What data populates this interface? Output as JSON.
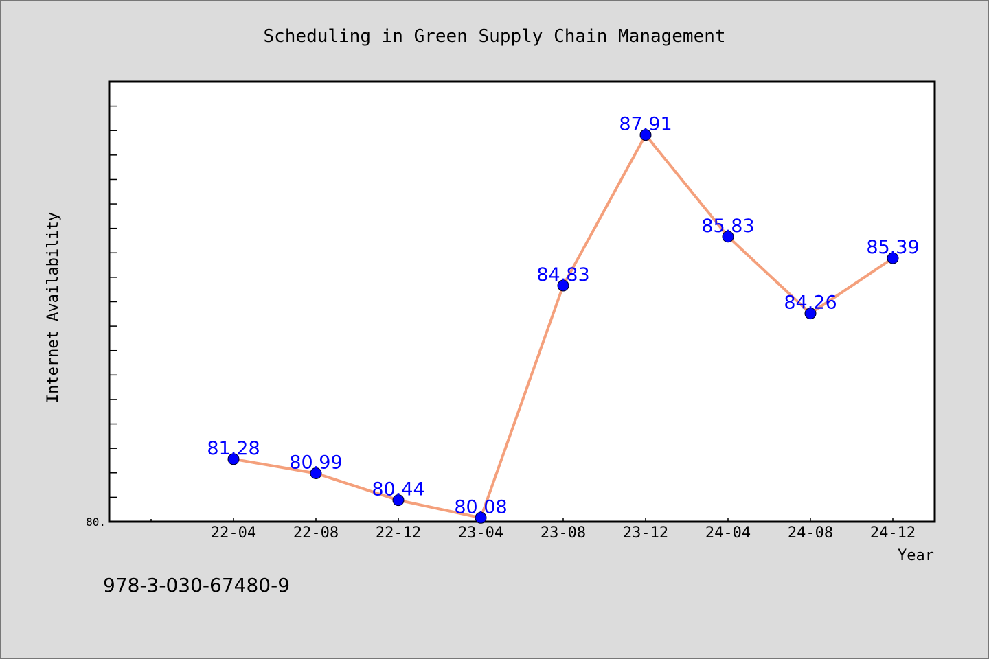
{
  "chart_data": {
    "type": "line",
    "title": "Scheduling in Green Supply Chain Management",
    "xlabel": "Year",
    "ylabel": "Internet Availability",
    "categories": [
      "22-04",
      "22-08",
      "22-12",
      "23-04",
      "23-08",
      "23-12",
      "24-04",
      "24-08",
      "24-12"
    ],
    "series": [
      {
        "values": [
          81.28,
          80.99,
          80.44,
          80.08,
          84.83,
          87.91,
          85.83,
          84.26,
          85.39
        ],
        "labels": [
          "81.28",
          "80.99",
          "80.44",
          "80.08",
          "84.83",
          "87.91",
          "85.83",
          "84.26",
          "85.39"
        ],
        "line_color": "#f4a07c",
        "marker_color": "#0000ff"
      }
    ],
    "ylim": [
      80.0,
      89.0
    ],
    "ytick_label": "80.",
    "grid": false,
    "legend": "none"
  },
  "footer": {
    "code": "978-3-030-67480-9"
  },
  "colors": {
    "background": "#dcdcdc",
    "plot_background": "#ffffff"
  }
}
